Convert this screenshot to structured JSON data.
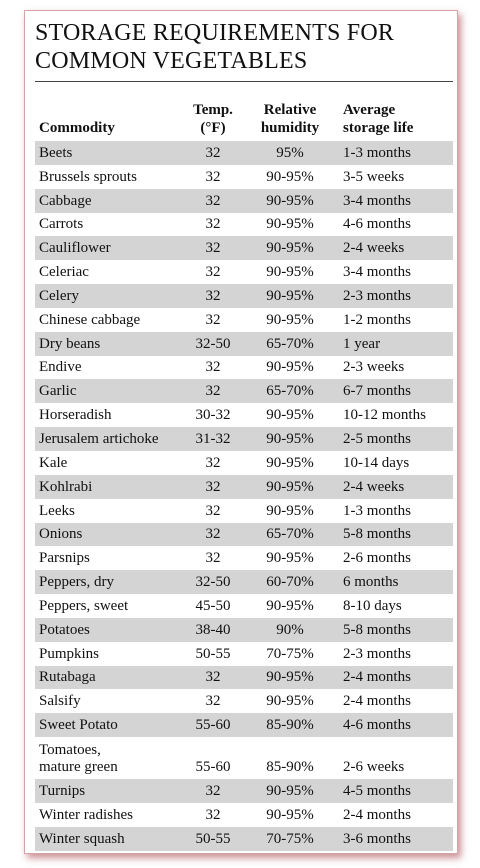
{
  "title": {
    "line1": "STORAGE REQUIREMENTS FOR",
    "line2": "COMMON VEGETABLES"
  },
  "columns": {
    "commodity": "Commodity",
    "temp_line1": "Temp.",
    "temp_line2": "(°F)",
    "humidity_line1": "Relative",
    "humidity_line2": "humidity",
    "life_line1": "Average",
    "life_line2": "storage life"
  },
  "rows": [
    {
      "commodity": "Beets",
      "temp": "32",
      "humidity": "95%",
      "life": "1-3 months"
    },
    {
      "commodity": "Brussels sprouts",
      "temp": "32",
      "humidity": "90-95%",
      "life": "3-5 weeks"
    },
    {
      "commodity": "Cabbage",
      "temp": "32",
      "humidity": "90-95%",
      "life": "3-4 months"
    },
    {
      "commodity": "Carrots",
      "temp": "32",
      "humidity": "90-95%",
      "life": "4-6 months"
    },
    {
      "commodity": "Cauliflower",
      "temp": "32",
      "humidity": "90-95%",
      "life": "2-4 weeks"
    },
    {
      "commodity": "Celeriac",
      "temp": "32",
      "humidity": "90-95%",
      "life": "3-4 months"
    },
    {
      "commodity": "Celery",
      "temp": "32",
      "humidity": "90-95%",
      "life": "2-3 months"
    },
    {
      "commodity": "Chinese cabbage",
      "temp": "32",
      "humidity": "90-95%",
      "life": "1-2 months"
    },
    {
      "commodity": "Dry beans",
      "temp": "32-50",
      "humidity": "65-70%",
      "life": "1 year"
    },
    {
      "commodity": "Endive",
      "temp": "32",
      "humidity": "90-95%",
      "life": "2-3 weeks"
    },
    {
      "commodity": "Garlic",
      "temp": "32",
      "humidity": "65-70%",
      "life": "6-7 months"
    },
    {
      "commodity": "Horseradish",
      "temp": "30-32",
      "humidity": "90-95%",
      "life": "10-12 months"
    },
    {
      "commodity": "Jerusalem artichoke",
      "temp": "31-32",
      "humidity": "90-95%",
      "life": "2-5 months"
    },
    {
      "commodity": "Kale",
      "temp": "32",
      "humidity": "90-95%",
      "life": "10-14 days"
    },
    {
      "commodity": "Kohlrabi",
      "temp": "32",
      "humidity": "90-95%",
      "life": "2-4 weeks"
    },
    {
      "commodity": "Leeks",
      "temp": "32",
      "humidity": "90-95%",
      "life": "1-3 months"
    },
    {
      "commodity": "Onions",
      "temp": "32",
      "humidity": "65-70%",
      "life": "5-8 months"
    },
    {
      "commodity": "Parsnips",
      "temp": "32",
      "humidity": "90-95%",
      "life": "2-6 months"
    },
    {
      "commodity": "Peppers, dry",
      "temp": "32-50",
      "humidity": "60-70%",
      "life": "6 months"
    },
    {
      "commodity": "Peppers, sweet",
      "temp": "45-50",
      "humidity": "90-95%",
      "life": "8-10 days"
    },
    {
      "commodity": "Potatoes",
      "temp": "38-40",
      "humidity": "90%",
      "life": "5-8 months"
    },
    {
      "commodity": "Pumpkins",
      "temp": "50-55",
      "humidity": "70-75%",
      "life": "2-3 months"
    },
    {
      "commodity": "Rutabaga",
      "temp": "32",
      "humidity": "90-95%",
      "life": "2-4 months"
    },
    {
      "commodity": "Salsify",
      "temp": "32",
      "humidity": "90-95%",
      "life": "2-4 months"
    },
    {
      "commodity": "Sweet Potato",
      "temp": "55-60",
      "humidity": "85-90%",
      "life": "4-6 months"
    },
    {
      "commodity": "Tomatoes,",
      "commodity_line2": "mature green",
      "temp": "55-60",
      "humidity": "85-90%",
      "life": "2-6 weeks"
    },
    {
      "commodity": "Turnips",
      "temp": "32",
      "humidity": "90-95%",
      "life": "4-5 months"
    },
    {
      "commodity": "Winter radishes",
      "temp": "32",
      "humidity": "90-95%",
      "life": "2-4 months"
    },
    {
      "commodity": "Winter squash",
      "temp": "50-55",
      "humidity": "70-75%",
      "life": "3-6 months"
    }
  ]
}
